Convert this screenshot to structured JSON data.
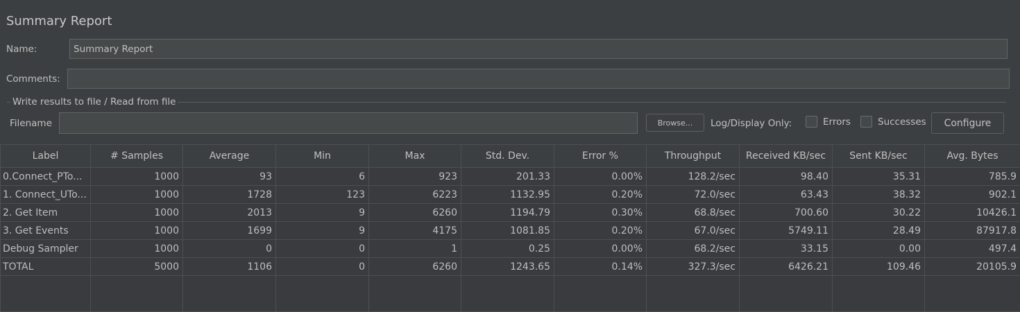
{
  "title": "Summary Report",
  "name": {
    "label": "Name:",
    "value": "Summary Report"
  },
  "comments": {
    "label": "Comments:",
    "value": ""
  },
  "file_section": {
    "legend": "Write results to file / Read from file",
    "filename_label": "Filename",
    "filename_value": "",
    "browse_label": "Browse...",
    "log_display_label": "Log/Display Only:",
    "errors_label": "Errors",
    "errors_checked": false,
    "successes_label": "Successes",
    "successes_checked": false,
    "configure_label": "Configure"
  },
  "table": {
    "columns": [
      "Label",
      "# Samples",
      "Average",
      "Min",
      "Max",
      "Std. Dev.",
      "Error %",
      "Throughput",
      "Received KB/sec",
      "Sent KB/sec",
      "Avg. Bytes"
    ],
    "rows": [
      [
        "0.Connect_PTo...",
        "1000",
        "93",
        "6",
        "923",
        "201.33",
        "0.00%",
        "128.2/sec",
        "98.40",
        "35.31",
        "785.9"
      ],
      [
        "1. Connect_UTo...",
        "1000",
        "1728",
        "123",
        "6223",
        "1132.95",
        "0.20%",
        "72.0/sec",
        "63.43",
        "38.32",
        "902.1"
      ],
      [
        "2. Get Item",
        "1000",
        "2013",
        "9",
        "6260",
        "1194.79",
        "0.30%",
        "68.8/sec",
        "700.60",
        "30.22",
        "10426.1"
      ],
      [
        "3. Get Events",
        "1000",
        "1699",
        "9",
        "4175",
        "1081.85",
        "0.20%",
        "67.0/sec",
        "5749.11",
        "28.49",
        "87917.8"
      ],
      [
        "Debug Sampler",
        "1000",
        "0",
        "0",
        "1",
        "0.25",
        "0.00%",
        "68.2/sec",
        "33.15",
        "0.00",
        "497.4"
      ],
      [
        "TOTAL",
        "5000",
        "1106",
        "0",
        "6260",
        "1243.65",
        "0.14%",
        "327.3/sec",
        "6426.21",
        "109.46",
        "20105.9"
      ]
    ]
  }
}
